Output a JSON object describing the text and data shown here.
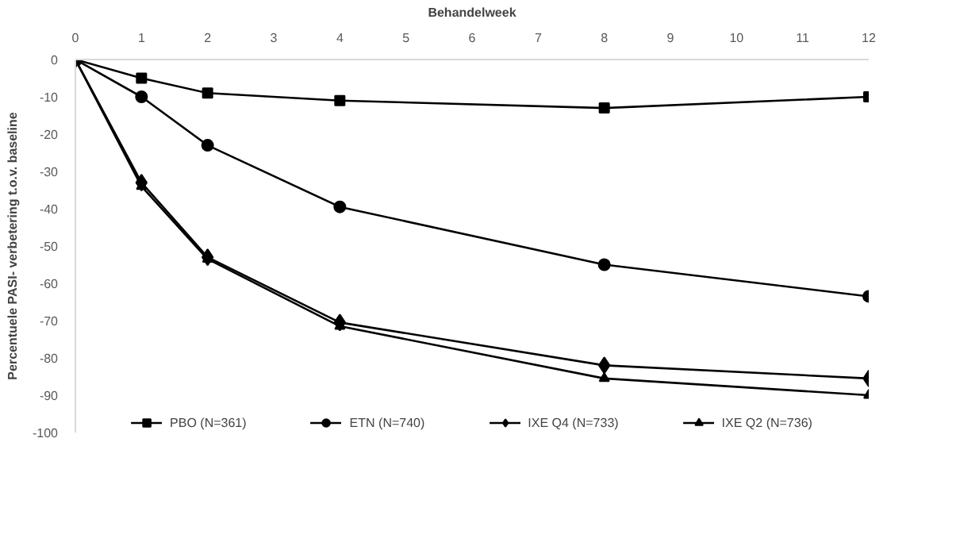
{
  "chart_data": {
    "type": "line",
    "xlabel": "Behandelweek",
    "ylabel": "Percentuele PASI- verbetering t.o.v. baseline",
    "x": [
      0,
      1,
      2,
      4,
      8,
      12
    ],
    "xlim": [
      0,
      12
    ],
    "xticks": [
      0,
      1,
      2,
      3,
      4,
      5,
      6,
      7,
      8,
      9,
      10,
      11,
      12
    ],
    "ylim": [
      -100,
      0
    ],
    "yticks": [
      0,
      -10,
      -20,
      -30,
      -40,
      -50,
      -60,
      -70,
      -80,
      -90,
      -100
    ],
    "grid": false,
    "legend": "bottom",
    "line_style": "solid",
    "series": [
      {
        "name": "PBO (N=361)",
        "color": "#000000",
        "marker": "square",
        "values": [
          0,
          -5,
          -9,
          -11,
          -13,
          -10
        ]
      },
      {
        "name": "ETN (N=740)",
        "color": "#000000",
        "marker": "circle",
        "values": [
          0,
          -10,
          -23,
          -39.5,
          -55,
          -63.5
        ]
      },
      {
        "name": "IXE Q4 (N=733)",
        "color": "#000000",
        "marker": "diamond",
        "values": [
          0,
          -33,
          -53,
          -70.5,
          -82,
          -85.5
        ]
      },
      {
        "name": "IXE Q2 (N=736)",
        "color": "#000000",
        "marker": "triangle",
        "values": [
          0,
          -34,
          -53.5,
          -71.5,
          -85.5,
          -90
        ]
      }
    ]
  }
}
